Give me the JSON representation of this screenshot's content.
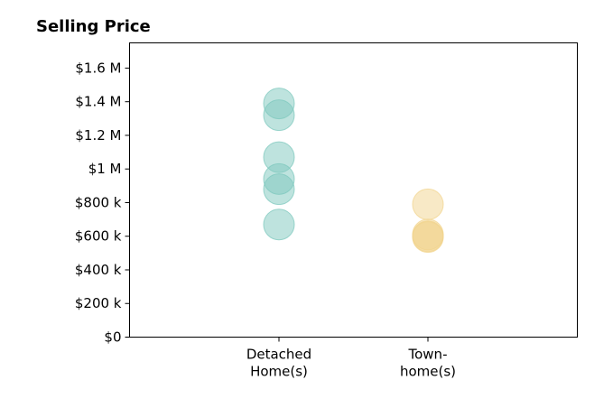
{
  "chart_data": {
    "type": "scatter",
    "title": "Selling Price",
    "xlabel": "",
    "ylabel": "",
    "categories": [
      [
        "Detached",
        "Home(s)"
      ],
      [
        "Town-",
        "home(s)"
      ]
    ],
    "ylim": [
      0,
      1750000
    ],
    "y_ticks": [
      0,
      200000,
      400000,
      600000,
      800000,
      1000000,
      1200000,
      1400000,
      1600000
    ],
    "y_tick_labels": [
      "$0",
      "$200 k",
      "$400 k",
      "$600 k",
      "$800 k",
      "$1 M",
      "$1.2 M",
      "$1.4 M",
      "$1.6 M"
    ],
    "grid": false,
    "legend": "none",
    "series": [
      {
        "category": 0,
        "color": "#7ec8bd",
        "opacity": 0.5,
        "values": [
          1390000,
          1320000,
          1070000,
          940000,
          880000,
          670000
        ]
      },
      {
        "category": 1,
        "color": "#f1d48e",
        "opacity": 0.5,
        "values": [
          790000,
          610000,
          600000,
          595000
        ]
      }
    ]
  }
}
